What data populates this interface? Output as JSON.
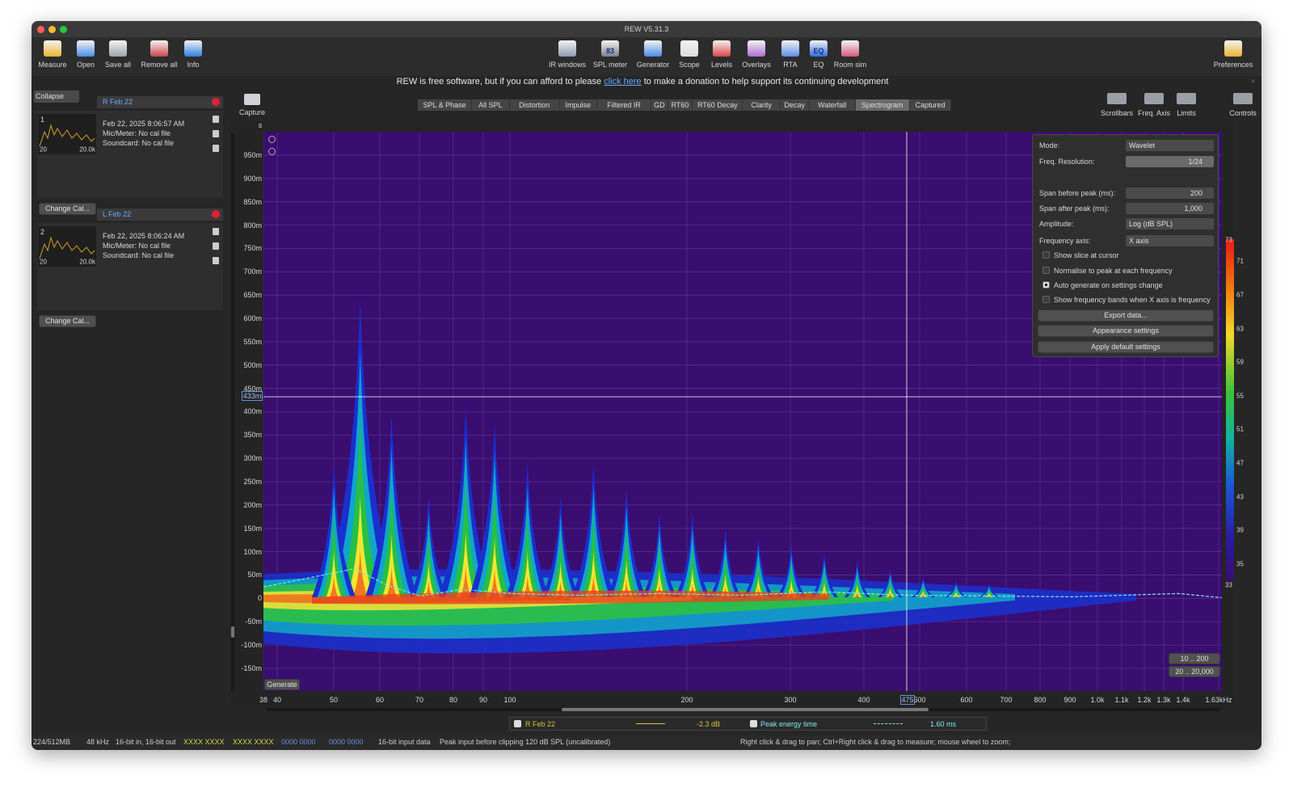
{
  "window": {
    "title": "REW V5.31.3"
  },
  "toolbar": {
    "left": [
      "Measure",
      "Open",
      "Save all",
      "Remove all",
      "Info"
    ],
    "center": [
      "IR windows",
      "SPL meter",
      "Generator",
      "Scope",
      "Levels",
      "Overlays",
      "RTA",
      "EQ",
      "Room sim"
    ],
    "right": [
      "Preferences"
    ],
    "spl_badge": "83",
    "eq_badge": "EQ"
  },
  "banner": {
    "before": "REW is free software, but if you can afford to please",
    "link": "click here",
    "after": "to make a donation to help support its continuing development"
  },
  "measurements": {
    "collapse": "Collapse",
    "items": [
      {
        "name": "R Feb 22",
        "index": "1",
        "date": "Feb 22, 2025 8:06:57 AM",
        "mic": "Mic/Meter: No cal file",
        "soundcard": "Soundcard: No cal file",
        "axis_min": "20",
        "axis_max": "20.0k",
        "button": "Change Cal..."
      },
      {
        "name": "L Feb 22",
        "index": "2",
        "date": "Feb 22, 2025 8:06:24 AM",
        "mic": "Mic/Meter: No cal file",
        "soundcard": "Soundcard: No cal file",
        "axis_min": "20",
        "axis_max": "20.0k",
        "button": "Change Cal..."
      }
    ]
  },
  "graph": {
    "capture": "Capture",
    "tabs": [
      "SPL & Phase",
      "All SPL",
      "Distortion",
      "Impulse",
      "Filtered IR",
      "GD",
      "RT60",
      "RT60 Decay",
      "Clarity",
      "Decay",
      "Waterfall",
      "Spectrogram",
      "Captured"
    ],
    "active_tab": "Spectrogram",
    "view_buttons": [
      "Scrollbars",
      "Freq. Axis",
      "Limits",
      "Controls"
    ],
    "y_unit": "s",
    "y_ticks": [
      "950m",
      "900m",
      "850m",
      "800m",
      "750m",
      "700m",
      "650m",
      "600m",
      "550m",
      "500m",
      "450m",
      "400m",
      "350m",
      "300m",
      "250m",
      "200m",
      "150m",
      "100m",
      "50m",
      "0",
      "-50m",
      "-100m",
      "-150m"
    ],
    "cursor_y": "433m",
    "x_ticks": [
      "38",
      "40",
      "50",
      "60",
      "70",
      "80",
      "90",
      "100",
      "200",
      "300",
      "400",
      "500",
      "600",
      "700",
      "800",
      "900",
      "1.0k",
      "1.1k",
      "1.2k",
      "1.3k",
      "1.4k",
      "1.63kHz"
    ],
    "cursor_x": "475",
    "color_scale": [
      "73",
      "71",
      "67",
      "63",
      "59",
      "55",
      "51",
      "47",
      "43",
      "39",
      "35",
      "33"
    ],
    "generate": "Generate",
    "ranges": [
      "10 .. 200",
      "20 .. 20,000"
    ],
    "legend": [
      {
        "name": "R Feb 22",
        "value": "-2.3 dB",
        "checked": true
      },
      {
        "name": "Peak energy time",
        "value": "1.60 ms",
        "checked": true
      }
    ]
  },
  "controls": {
    "rows": [
      {
        "label": "Mode:",
        "value": "Wavelet"
      },
      {
        "label": "Freq. Resolution:",
        "value": "1/24"
      },
      {
        "label": "Span before peak (ms):",
        "value": "200"
      },
      {
        "label": "Span after peak (ms):",
        "value": "1,000"
      },
      {
        "label": "Amplitude:",
        "value": "Log (dB SPL)"
      },
      {
        "label": "Frequency axis:",
        "value": "X axis"
      }
    ],
    "checkboxes": [
      {
        "label": "Show slice at cursor",
        "checked": false
      },
      {
        "label": "Normalise to peak at each frequency",
        "checked": false
      },
      {
        "label": "Auto generate on settings change",
        "checked": true
      },
      {
        "label": "Show frequency bands when X axis is frequency",
        "checked": false
      }
    ],
    "buttons": [
      "Export data...",
      "Appearance settings",
      "Apply default settings"
    ]
  },
  "status": [
    "224/512MB",
    "48 kHz",
    "16-bit in, 16-bit out",
    "XXXX XXXX",
    "XXXX XXXX",
    "0000 0000",
    "0000 0000",
    "16-bit input data",
    "Peak input before clipping 120 dB SPL (uncalibrated)",
    "Right click & drag to pan; Ctrl+Right click & drag to measure; mouse wheel to zoom;"
  ]
}
